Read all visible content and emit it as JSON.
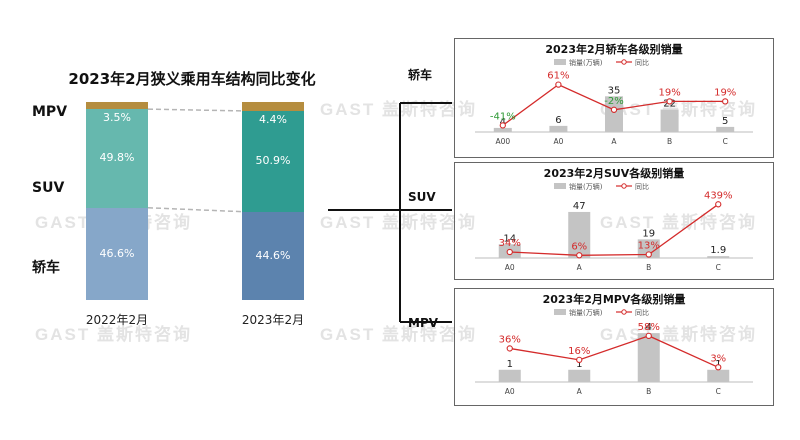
{
  "watermark": "GAST 盖斯特咨询",
  "colors": {
    "mpv": "#b58d3f",
    "suv_2022": "#66b8ae",
    "suv_2023": "#2f9c91",
    "sedan_2022": "#86a7c9",
    "sedan_2023": "#5c83ae",
    "bar_grey": "#c4c4c4",
    "line_red": "#d42b2b",
    "neg_green": "#2e9a35"
  },
  "structure_chart": {
    "title": "2023年2月狭义乘用车结构同比变化",
    "category_labels": {
      "mpv": "MPV",
      "suv": "SUV",
      "sedan": "轿车"
    },
    "chart_data": {
      "type": "bar",
      "stacked": true,
      "categories": [
        "2022年2月",
        "2023年2月"
      ],
      "series": [
        {
          "name": "轿车",
          "values": [
            46.6,
            44.6
          ],
          "labels": [
            "46.6%",
            "44.6%"
          ]
        },
        {
          "name": "SUV",
          "values": [
            49.8,
            50.9
          ],
          "labels": [
            "49.8%",
            "50.9%"
          ]
        },
        {
          "name": "MPV",
          "values": [
            3.5,
            4.4
          ],
          "labels": [
            "3.5%",
            "4.4%"
          ]
        }
      ],
      "unit": "%"
    }
  },
  "branch_labels": {
    "sedan": "轿车",
    "suv": "SUV",
    "mpv": "MPV"
  },
  "panels": [
    {
      "title": "2023年2月轿车各级别销量",
      "legend": {
        "bar": "销量(万辆)",
        "line": "同比"
      },
      "chart_data": {
        "type": "bar",
        "categories": [
          "A00",
          "A0",
          "A",
          "B",
          "C"
        ],
        "series": [
          {
            "name": "销量(万辆)",
            "values": [
              4,
              6,
              35,
              22,
              5
            ],
            "labels": [
              "4",
              "6",
              "35",
              "22",
              "5"
            ]
          },
          {
            "name": "同比",
            "type": "line",
            "values": [
              -41,
              61,
              -2,
              19,
              19
            ],
            "labels": [
              "-41%",
              "61%",
              "-2%",
              "19%",
              "19%"
            ]
          }
        ]
      }
    },
    {
      "title": "2023年2月SUV各级别销量",
      "legend": {
        "bar": "销量(万辆)",
        "line": "同比"
      },
      "chart_data": {
        "type": "bar",
        "categories": [
          "A0",
          "A",
          "B",
          "C"
        ],
        "series": [
          {
            "name": "销量(万辆)",
            "values": [
              14,
              47,
              19,
              1.9
            ],
            "labels": [
              "14",
              "47",
              "19",
              "1.9"
            ]
          },
          {
            "name": "同比",
            "type": "line",
            "values": [
              34,
              6,
              13,
              439
            ],
            "labels": [
              "34%",
              "6%",
              "13%",
              "439%"
            ]
          }
        ]
      }
    },
    {
      "title": "2023年2月MPV各级别销量",
      "legend": {
        "bar": "销量(万辆)",
        "line": "同比"
      },
      "chart_data": {
        "type": "bar",
        "categories": [
          "A0",
          "A",
          "B",
          "C"
        ],
        "series": [
          {
            "name": "销量(万辆)",
            "values": [
              1,
              1,
              4,
              1
            ],
            "labels": [
              "1",
              "1",
              "4",
              "1"
            ]
          },
          {
            "name": "同比",
            "type": "line",
            "values": [
              36,
              16,
              58,
              3
            ],
            "labels": [
              "36%",
              "16%",
              "58%",
              "3%"
            ]
          }
        ]
      }
    }
  ]
}
